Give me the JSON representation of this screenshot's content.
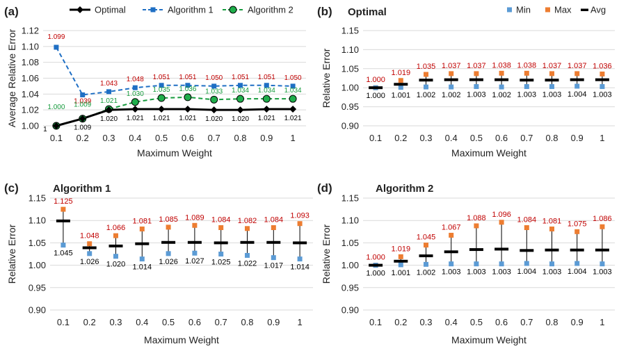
{
  "figure": {
    "panels": [
      {
        "tag": "(a)",
        "title": ""
      },
      {
        "tag": "(b)",
        "title": "Optimal"
      },
      {
        "tag": "(c)",
        "title": "Algorithm 1"
      },
      {
        "tag": "(d)",
        "title": "Algorithm 2"
      }
    ]
  },
  "chart_data": [
    {
      "type": "line",
      "panel": "(a)",
      "title": "",
      "xlabel": "Maximum Weight",
      "ylabel": "Average Relative Error",
      "categories": [
        "0.1",
        "0.2",
        "0.3",
        "0.4",
        "0.5",
        "0.6",
        "0.7",
        "0.8",
        "0.9",
        "1"
      ],
      "ylim": [
        1.0,
        1.12
      ],
      "yticks": [
        "1.00",
        "1.02",
        "1.04",
        "1.06",
        "1.08",
        "1.10",
        "1.12"
      ],
      "grid": true,
      "legend_position": "top",
      "series": [
        {
          "name": "Optimal",
          "color": "#000000",
          "marker": "diamond",
          "line": "solid",
          "values": [
            1.0,
            1.009,
            1.02,
            1.021,
            1.021,
            1.021,
            1.02,
            1.02,
            1.021,
            1.021
          ],
          "labels": [
            "1",
            "1.009",
            "1.020",
            "1.021",
            "1.021",
            "1.021",
            "1.020",
            "1.020",
            "1.021",
            "1.021"
          ]
        },
        {
          "name": "Algorithm 1",
          "color": "#1f6fc4",
          "marker": "square",
          "line": "dashed",
          "values": [
            1.099,
            1.039,
            1.043,
            1.048,
            1.051,
            1.051,
            1.05,
            1.051,
            1.051,
            1.05
          ],
          "labels": [
            "1.099",
            "1.039",
            "1.043",
            "1.048",
            "1.051",
            "1.051",
            "1.050",
            "1.051",
            "1.051",
            "1.050"
          ]
        },
        {
          "name": "Algorithm 2",
          "color": "#169b3d",
          "marker": "circle",
          "line": "dashed",
          "values": [
            1.0,
            1.009,
            1.021,
            1.03,
            1.035,
            1.036,
            1.033,
            1.034,
            1.034,
            1.034
          ],
          "labels": [
            "1.000",
            "1.009",
            "1.021",
            "1.030",
            "1.035",
            "1.036",
            "1.033",
            "1.034",
            "1.034",
            "1.034"
          ]
        }
      ]
    },
    {
      "type": "range",
      "panel": "(b)",
      "title": "Optimal",
      "xlabel": "Maximum Weight",
      "ylabel": "Relative Error",
      "categories": [
        "0.1",
        "0.2",
        "0.3",
        "0.4",
        "0.5",
        "0.6",
        "0.7",
        "0.8",
        "0.9",
        "1"
      ],
      "ylim": [
        0.9,
        1.15
      ],
      "yticks": [
        "0.90",
        "0.95",
        "1.00",
        "1.05",
        "1.10",
        "1.15"
      ],
      "grid": true,
      "legend_position": "top-right",
      "legend": [
        "Min",
        "Max",
        "Avg"
      ],
      "min": [
        1.0,
        1.001,
        1.002,
        1.002,
        1.003,
        1.002,
        1.003,
        1.003,
        1.004,
        1.003
      ],
      "max": [
        1.0,
        1.019,
        1.035,
        1.037,
        1.037,
        1.038,
        1.038,
        1.037,
        1.037,
        1.036
      ],
      "avg": [
        1.0,
        1.009,
        1.02,
        1.021,
        1.021,
        1.021,
        1.02,
        1.02,
        1.021,
        1.021
      ],
      "min_labels": [
        "1.000",
        "1.001",
        "1.002",
        "1.002",
        "1.003",
        "1.002",
        "1.003",
        "1.003",
        "1.004",
        "1.003"
      ],
      "max_labels": [
        "1.000",
        "1.019",
        "1.035",
        "1.037",
        "1.037",
        "1.038",
        "1.038",
        "1.037",
        "1.037",
        "1.036"
      ]
    },
    {
      "type": "range",
      "panel": "(c)",
      "title": "Algorithm 1",
      "xlabel": "Maximum Weight",
      "ylabel": "Relative Error",
      "categories": [
        "0.1",
        "0.2",
        "0.3",
        "0.4",
        "0.5",
        "0.6",
        "0.7",
        "0.8",
        "0.9",
        "1"
      ],
      "ylim": [
        0.9,
        1.15
      ],
      "yticks": [
        "0.90",
        "0.95",
        "1.00",
        "1.05",
        "1.10",
        "1.15"
      ],
      "grid": true,
      "min": [
        1.045,
        1.026,
        1.02,
        1.014,
        1.026,
        1.027,
        1.025,
        1.022,
        1.017,
        1.014
      ],
      "max": [
        1.125,
        1.048,
        1.066,
        1.081,
        1.085,
        1.089,
        1.084,
        1.082,
        1.084,
        1.093
      ],
      "avg": [
        1.099,
        1.039,
        1.043,
        1.048,
        1.051,
        1.051,
        1.05,
        1.051,
        1.051,
        1.05
      ],
      "min_labels": [
        "1.045",
        "1.026",
        "1.020",
        "1.014",
        "1.026",
        "1.027",
        "1.025",
        "1.022",
        "1.017",
        "1.014"
      ],
      "max_labels": [
        "1.125",
        "1.048",
        "1.066",
        "1.081",
        "1.085",
        "1.089",
        "1.084",
        "1.082",
        "1.084",
        "1.093"
      ]
    },
    {
      "type": "range",
      "panel": "(d)",
      "title": "Algorithm 2",
      "xlabel": "Maximum Weight",
      "ylabel": "Relative Error",
      "categories": [
        "0.1",
        "0.2",
        "0.3",
        "0.4",
        "0.5",
        "0.6",
        "0.7",
        "0.8",
        "0.9",
        "1"
      ],
      "ylim": [
        0.9,
        1.15
      ],
      "yticks": [
        "0.90",
        "0.95",
        "1.00",
        "1.05",
        "1.10",
        "1.15"
      ],
      "grid": true,
      "min": [
        1.0,
        1.001,
        1.002,
        1.003,
        1.003,
        1.003,
        1.004,
        1.003,
        1.004,
        1.003
      ],
      "max": [
        1.0,
        1.019,
        1.045,
        1.067,
        1.088,
        1.096,
        1.084,
        1.081,
        1.075,
        1.086
      ],
      "avg": [
        1.0,
        1.009,
        1.021,
        1.03,
        1.035,
        1.036,
        1.033,
        1.034,
        1.034,
        1.034
      ],
      "min_labels": [
        "1.000",
        "1.001",
        "1.002",
        "1.003",
        "1.003",
        "1.003",
        "1.004",
        "1.003",
        "1.004",
        "1.003"
      ],
      "max_labels": [
        "1.000",
        "1.019",
        "1.045",
        "1.067",
        "1.088",
        "1.096",
        "1.084",
        "1.081",
        "1.075",
        "1.086"
      ]
    }
  ],
  "colors": {
    "min_marker": "#5b9bd5",
    "max_marker": "#ed7d31",
    "max_label": "#c00000",
    "grid": "#d9d9d9",
    "text": "#222222"
  }
}
